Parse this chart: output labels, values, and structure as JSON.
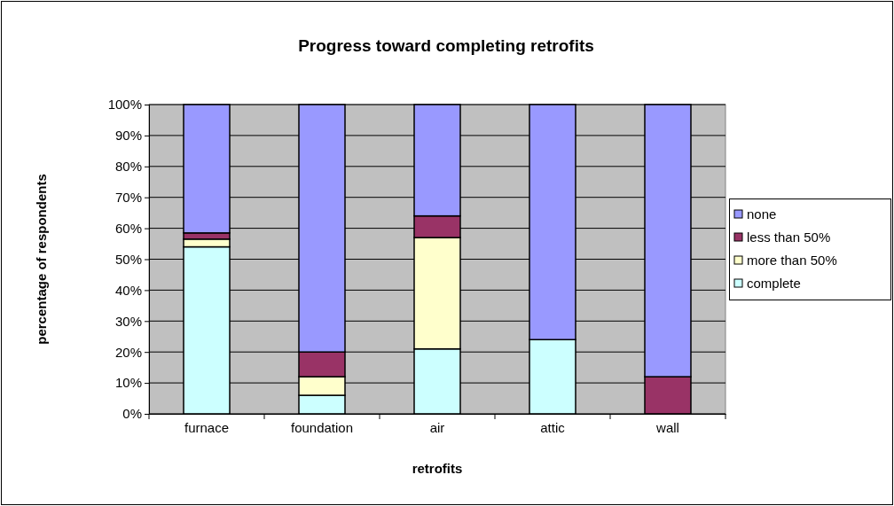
{
  "chart_data": {
    "type": "bar",
    "title": "Progress toward completing retrofits",
    "xlabel": "retrofits",
    "ylabel": "percentage of respondents",
    "categories": [
      "furnace",
      "foundation",
      "air",
      "attic",
      "wall"
    ],
    "stacked": true,
    "ylim": [
      0,
      100
    ],
    "yticks": [
      {
        "value": 0,
        "label": "0%"
      },
      {
        "value": 10,
        "label": "10%"
      },
      {
        "value": 20,
        "label": "20%"
      },
      {
        "value": 30,
        "label": "30%"
      },
      {
        "value": 40,
        "label": "40%"
      },
      {
        "value": 50,
        "label": "50%"
      },
      {
        "value": 60,
        "label": "60%"
      },
      {
        "value": 70,
        "label": "70%"
      },
      {
        "value": 80,
        "label": "80%"
      },
      {
        "value": 90,
        "label": "90%"
      },
      {
        "value": 100,
        "label": "100%"
      }
    ],
    "grid": "y",
    "legend": "right",
    "series": [
      {
        "name": "complete",
        "color": "#ccffff",
        "values": [
          54,
          6,
          21,
          24,
          0
        ]
      },
      {
        "name": "more than 50%",
        "color": "#ffffcc",
        "values": [
          2.5,
          6,
          36,
          0,
          0
        ]
      },
      {
        "name": "less than 50%",
        "color": "#993366",
        "values": [
          2,
          8,
          7,
          0,
          12
        ]
      },
      {
        "name": "none",
        "color": "#9999ff",
        "values": [
          41.5,
          80,
          36,
          76,
          88
        ]
      }
    ]
  }
}
